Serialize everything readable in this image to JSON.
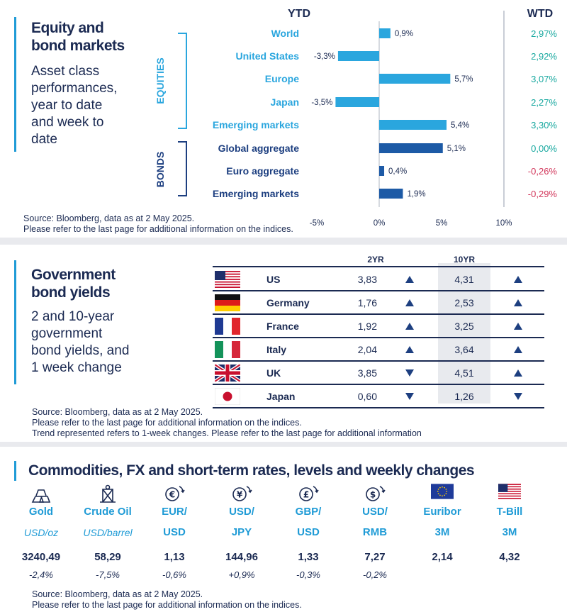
{
  "equity_panel": {
    "title_line1": "Equity and",
    "title_line2": "bond markets",
    "subtitle_lines": [
      "Asset class",
      "performances,",
      "year to date",
      "and week to",
      "date"
    ],
    "ytd_header": "YTD",
    "wtd_header": "WTD",
    "group_equities": "EQUITIES",
    "group_bonds": "BONDS",
    "source_line1": "Source: Bloomberg, data as at 2 May 2025.",
    "source_line2": "Please refer to the last page for additional information on the indices."
  },
  "chart_data": {
    "type": "bar",
    "orientation": "horizontal",
    "categories": [
      "World",
      "United States",
      "Europe",
      "Japan",
      "Emerging  markets",
      "Global aggregate",
      "Euro aggregate",
      "Emerging  markets"
    ],
    "groups": [
      "EQUITIES",
      "EQUITIES",
      "EQUITIES",
      "EQUITIES",
      "EQUITIES",
      "BONDS",
      "BONDS",
      "BONDS"
    ],
    "values": [
      0.9,
      -3.3,
      5.7,
      -3.5,
      5.4,
      5.1,
      0.4,
      1.9
    ],
    "value_labels": [
      "0,9%",
      "-3,3%",
      "5,7%",
      "-3,5%",
      "5,4%",
      "5,1%",
      "0,4%",
      "1,9%"
    ],
    "wtd_labels": [
      "2,97%",
      "2,92%",
      "3,07%",
      "2,27%",
      "3,30%",
      "0,00%",
      "-0,26%",
      "-0,29%"
    ],
    "xlim": [
      -5,
      10
    ],
    "xticks": [
      -5,
      0,
      5,
      10
    ],
    "xtick_labels": [
      "-5%",
      "0%",
      "5%",
      "10%"
    ],
    "colors": {
      "equities": "#2aa6de",
      "bonds": "#1d5aa6",
      "positive": "#1aa9a0",
      "negative": "#d2385c"
    }
  },
  "bond_panel": {
    "title_line1": "Government",
    "title_line2": "bond yields",
    "subtitle_lines": [
      "2 and 10-year",
      "government",
      "bond yields, and",
      "1 week change"
    ],
    "col_2yr": "2YR",
    "col_10yr": "10YR",
    "rows": [
      {
        "flag": "us-flag-icon",
        "country": "US",
        "y2": "3,83",
        "t2": "up",
        "y10": "4,31",
        "t10": "up"
      },
      {
        "flag": "germany-flag-icon",
        "country": "Germany",
        "y2": "1,76",
        "t2": "up",
        "y10": "2,53",
        "t10": "up"
      },
      {
        "flag": "france-flag-icon",
        "country": "France",
        "y2": "1,92",
        "t2": "up",
        "y10": "3,25",
        "t10": "up"
      },
      {
        "flag": "italy-flag-icon",
        "country": "Italy",
        "y2": "2,04",
        "t2": "up",
        "y10": "3,64",
        "t10": "up"
      },
      {
        "flag": "uk-flag-icon",
        "country": "UK",
        "y2": "3,85",
        "t2": "down",
        "y10": "4,51",
        "t10": "up"
      },
      {
        "flag": "japan-flag-icon",
        "country": "Japan",
        "y2": "0,60",
        "t2": "down",
        "y10": "1,26",
        "t10": "down"
      }
    ],
    "source_line1": "Source: Bloomberg, data as at 2 May 2025.",
    "source_line2": "Please refer to the last page for additional information on the indices.",
    "source_line3": "Trend represented refers to 1-week changes. Please refer to the last page for additional information"
  },
  "commodities_panel": {
    "title": "Commodities, FX and short-term rates, levels and weekly changes",
    "items": [
      {
        "icon": "gold-bars-icon",
        "name": "Gold",
        "unit": "USD/oz",
        "unit_italic": true,
        "value": "3240,49",
        "change": "-2,4%"
      },
      {
        "icon": "oil-pump-icon",
        "name": "Crude Oil",
        "unit": "USD/barrel",
        "unit_italic": true,
        "value": "58,29",
        "change": "-7,5%"
      },
      {
        "icon": "euro-exchange-icon",
        "name": "EUR/",
        "unit": "USD",
        "unit_italic": false,
        "value": "1,13",
        "change": "-0,6%"
      },
      {
        "icon": "dollar-yen-exchange-icon",
        "name": "USD/",
        "unit": "JPY",
        "unit_italic": false,
        "value": "144,96",
        "change": "+0,9%"
      },
      {
        "icon": "pound-exchange-icon",
        "name": "GBP/",
        "unit": "USD",
        "unit_italic": false,
        "value": "1,33",
        "change": "-0,3%"
      },
      {
        "icon": "dollar-yuan-exchange-icon",
        "name": "USD/",
        "unit": "RMB",
        "unit_italic": false,
        "value": "7,27",
        "change": "-0,2%"
      },
      {
        "icon": "eu-flag-icon",
        "name": "Euribor",
        "unit": "3M",
        "unit_italic": false,
        "value": "2,14",
        "change": ""
      },
      {
        "icon": "us-flag-icon",
        "name": "T-Bill",
        "unit": "3M",
        "unit_italic": false,
        "value": "4,32",
        "change": ""
      }
    ],
    "source_line1": "Source: Bloomberg, data as at 2 May 2025.",
    "source_line2": "Please refer to the last page for additional information on the indices."
  }
}
